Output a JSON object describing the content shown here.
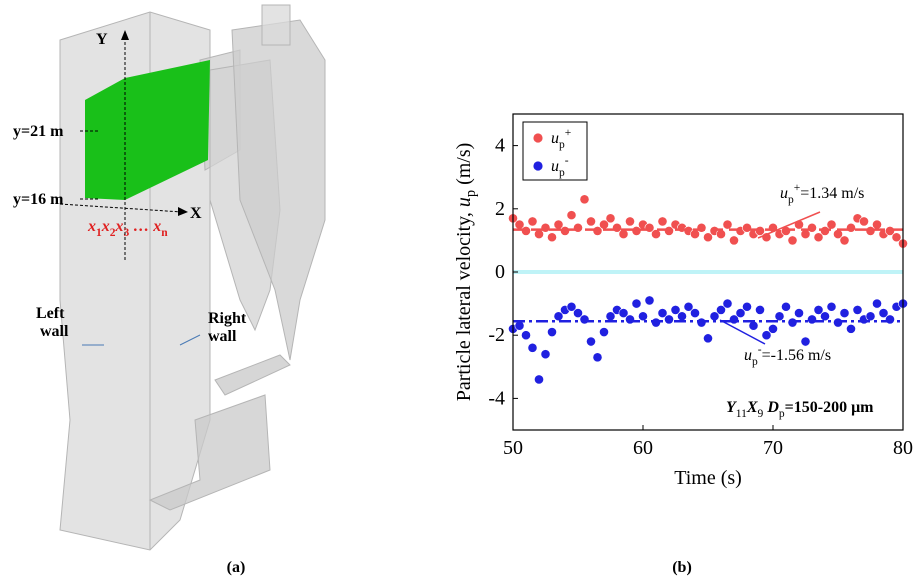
{
  "diagram": {
    "axis_y": "Y",
    "axis_x": "X",
    "level_top": "y=21 m",
    "level_bottom": "y=16 m",
    "positions": [
      {
        "text": "x",
        "style": "italic"
      },
      {
        "text": "1",
        "style": "sub"
      },
      {
        "text": "x",
        "style": "italic"
      },
      {
        "text": "2",
        "style": "sub"
      },
      {
        "text": "x",
        "style": "italic"
      },
      {
        "text": "3",
        "style": "sub"
      },
      {
        "text": " … x",
        "style": "italic"
      },
      {
        "text": "n",
        "style": "sub"
      }
    ],
    "left_wall": [
      "Left",
      "wall"
    ],
    "right_wall": [
      "Right",
      "wall"
    ],
    "caption": "(a)"
  },
  "chart_data": {
    "type": "scatter",
    "caption": "(b)",
    "xlabel": "Time (s)",
    "ylabel": [
      {
        "text": "Particle lateral velocity, ",
        "style": "normal"
      },
      {
        "text": "u",
        "style": "italic"
      },
      {
        "text": "p",
        "style": "sub"
      },
      {
        "text": " (m/s)",
        "style": "normal"
      }
    ],
    "xlim": [
      50,
      80
    ],
    "xticks": [
      50,
      60,
      70,
      80
    ],
    "ylim": [
      -5,
      5
    ],
    "yticks": [
      -4,
      -2,
      0,
      2,
      4
    ],
    "reference_line": 0,
    "reference_color": "#bff3f7",
    "legend": "upper-left",
    "x": [
      50,
      50.5,
      51,
      51.5,
      52,
      52.5,
      53,
      53.5,
      54,
      54.5,
      55,
      55.5,
      56,
      56.5,
      57,
      57.5,
      58,
      58.5,
      59,
      59.5,
      60,
      60.5,
      61,
      61.5,
      62,
      62.5,
      63,
      63.5,
      64,
      64.5,
      65,
      65.5,
      66,
      66.5,
      67,
      67.5,
      68,
      68.5,
      69,
      69.5,
      70,
      70.5,
      71,
      71.5,
      72,
      72.5,
      73,
      73.5,
      74,
      74.5,
      75,
      75.5,
      76,
      76.5,
      77,
      77.5,
      78,
      78.5,
      79,
      79.5,
      80
    ],
    "series": [
      {
        "name": [
          {
            "text": "u",
            "style": "italic"
          },
          {
            "text": "p",
            "style": "sub"
          },
          {
            "text": "+",
            "style": "sup"
          }
        ],
        "color": "#f05050",
        "mean": 1.34,
        "values": [
          1.7,
          1.5,
          1.3,
          1.6,
          1.2,
          1.4,
          1.1,
          1.5,
          1.3,
          1.8,
          1.4,
          2.3,
          1.6,
          1.3,
          1.5,
          1.7,
          1.4,
          1.2,
          1.6,
          1.3,
          1.5,
          1.4,
          1.2,
          1.6,
          1.3,
          1.5,
          1.4,
          1.3,
          1.2,
          1.4,
          1.1,
          1.3,
          1.2,
          1.5,
          1.0,
          1.3,
          1.4,
          1.2,
          1.3,
          1.1,
          1.4,
          1.2,
          1.3,
          1.0,
          1.5,
          1.2,
          1.4,
          1.1,
          1.3,
          1.5,
          1.2,
          1.0,
          1.4,
          1.7,
          1.6,
          1.3,
          1.5,
          1.2,
          1.3,
          1.1,
          0.9
        ],
        "annotation": [
          {
            "text": "u",
            "style": "italic"
          },
          {
            "text": "p",
            "style": "sub"
          },
          {
            "text": "+",
            "style": "sup"
          },
          {
            "text": "=1.34 m/s",
            "style": "normal"
          }
        ]
      },
      {
        "name": [
          {
            "text": "u",
            "style": "italic"
          },
          {
            "text": "p",
            "style": "sub"
          },
          {
            "text": "-",
            "style": "sup"
          }
        ],
        "color": "#2020e0",
        "mean": -1.56,
        "values": [
          -1.8,
          -1.7,
          -2.0,
          -2.4,
          -3.4,
          -2.6,
          -1.9,
          -1.4,
          -1.2,
          -1.1,
          -1.3,
          -1.5,
          -2.2,
          -2.7,
          -1.9,
          -1.4,
          -1.2,
          -1.3,
          -1.5,
          -1.0,
          -1.4,
          -0.9,
          -1.6,
          -1.3,
          -1.5,
          -1.2,
          -1.4,
          -1.1,
          -1.3,
          -1.6,
          -2.1,
          -1.4,
          -1.2,
          -1.0,
          -1.5,
          -1.3,
          -1.1,
          -1.7,
          -1.2,
          -2.0,
          -1.8,
          -1.4,
          -1.1,
          -1.6,
          -1.3,
          -2.2,
          -1.5,
          -1.2,
          -1.4,
          -1.1,
          -1.6,
          -1.3,
          -1.8,
          -1.2,
          -1.5,
          -1.4,
          -1.0,
          -1.3,
          -1.5,
          -1.1,
          -1.0
        ],
        "annotation": [
          {
            "text": "u",
            "style": "italic"
          },
          {
            "text": "p",
            "style": "sub"
          },
          {
            "text": "-",
            "style": "sup"
          },
          {
            "text": "=-1.56 m/s",
            "style": "normal"
          }
        ]
      }
    ],
    "condition": [
      {
        "text": "Y",
        "style": "bold-italic"
      },
      {
        "text": "11",
        "style": "sub"
      },
      {
        "text": "X",
        "style": "bold-italic"
      },
      {
        "text": "9",
        "style": "sub"
      },
      {
        "text": "  D",
        "style": "bold-italic"
      },
      {
        "text": "p",
        "style": "sub"
      },
      {
        "text": "=150-200 μm",
        "style": "bold"
      }
    ]
  }
}
